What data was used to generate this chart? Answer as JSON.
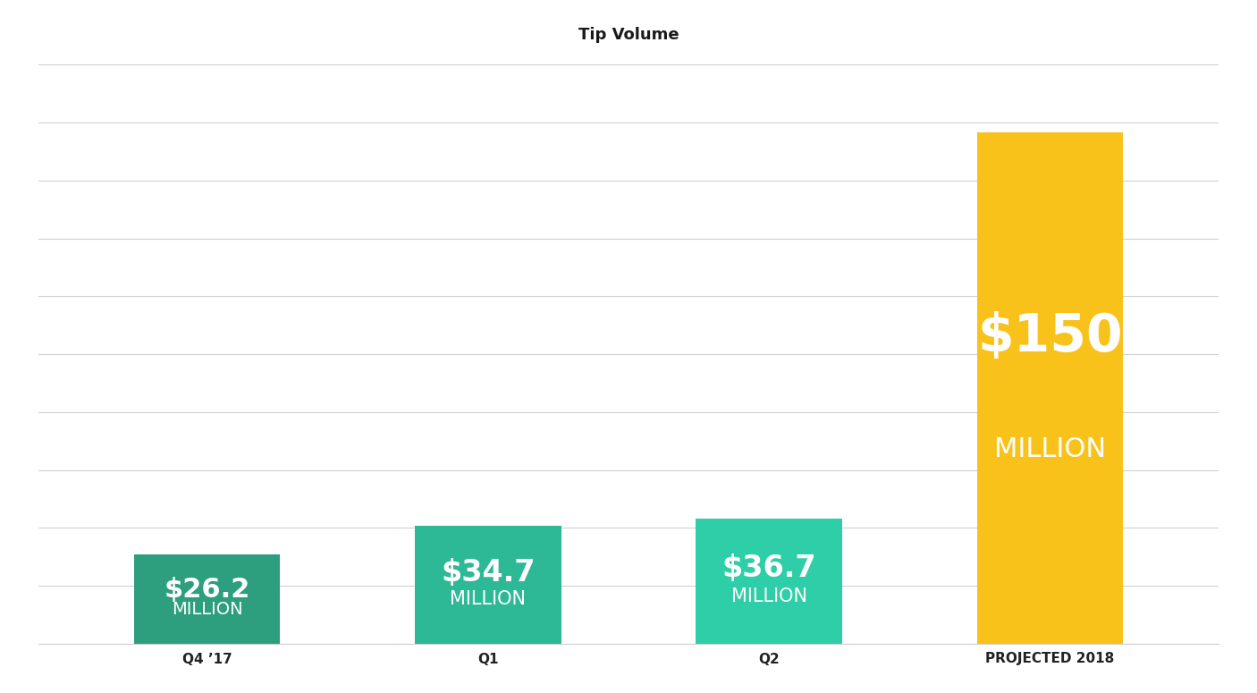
{
  "title": "Tip Volume",
  "categories": [
    "Q4 ’17",
    "Q1",
    "Q2",
    "PROJECTED 2018"
  ],
  "values": [
    26.2,
    34.7,
    36.7,
    150
  ],
  "bar_colors": [
    "#2d9e7e",
    "#2db896",
    "#2ecfa8",
    "#f9c21a"
  ],
  "bar_labels_line1": [
    "$26.2",
    "$34.7",
    "$36.7",
    "$150"
  ],
  "bar_labels_line2": [
    "MILLION",
    "MILLION",
    "MILLION",
    "MILLION"
  ],
  "background_color": "#ffffff",
  "title_fontsize": 13,
  "label_fontsize_large": [
    22,
    24,
    24,
    42
  ],
  "label_fontsize_small": [
    14,
    15,
    15,
    22
  ],
  "ylim": [
    0,
    170
  ],
  "grid_color": "#d0d0d0",
  "text_color": "#ffffff",
  "xtick_color": "#222222",
  "bar_width": 0.52
}
